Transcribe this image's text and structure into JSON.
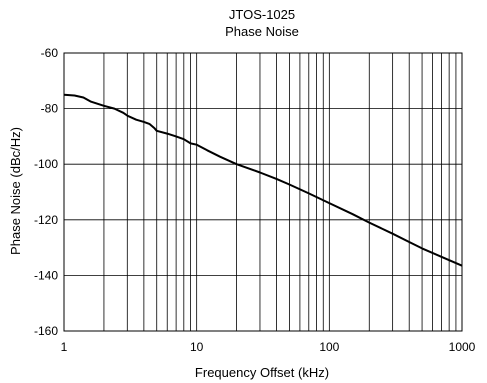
{
  "chart_data": {
    "type": "line",
    "title": "JTOS-1025",
    "subtitle": "Phase Noise",
    "xlabel": "Frequency Offset (kHz)",
    "ylabel": "Phase Noise (dBc/Hz)",
    "xscale": "log",
    "xlim": [
      1,
      1000
    ],
    "ylim": [
      -160,
      -60
    ],
    "x_tick_labels": [
      "1",
      "10",
      "100",
      "1000"
    ],
    "y_tick_labels": [
      "-60",
      "-80",
      "-100",
      "-120",
      "-140",
      "-160"
    ],
    "grid": true,
    "series": [
      {
        "x": [
          1,
          1.2,
          1.4,
          1.6,
          2,
          2.4,
          2.8,
          3,
          3.5,
          4,
          4.4,
          4.8,
          5,
          6,
          7,
          8,
          9,
          10,
          12,
          15,
          20,
          30,
          40,
          50,
          70,
          100,
          150,
          200,
          300,
          400,
          500,
          700,
          1000
        ],
        "y": [
          -75,
          -75.3,
          -76,
          -77.5,
          -79,
          -80,
          -81.5,
          -82.5,
          -84,
          -84.8,
          -85.5,
          -87,
          -88,
          -89,
          -90,
          -91,
          -92.5,
          -93,
          -95,
          -97.3,
          -100,
          -103,
          -105.3,
          -107.3,
          -110.5,
          -114,
          -118,
          -121,
          -125,
          -128,
          -130.3,
          -133.3,
          -136.5
        ]
      }
    ],
    "colors": {
      "line": "#000000",
      "grid": "#000000",
      "background": "#ffffff"
    }
  }
}
